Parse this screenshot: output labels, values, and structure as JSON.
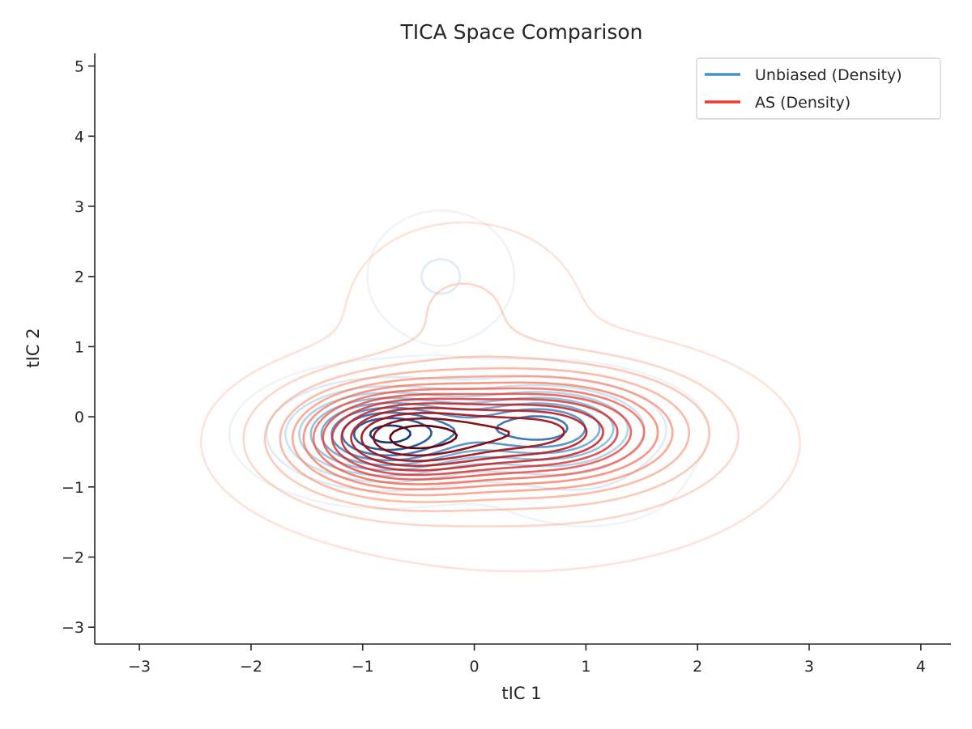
{
  "chart_data": {
    "type": "contour",
    "title": "TICA Space Comparison",
    "xlabel": "tIC 1",
    "ylabel": "tIC 2",
    "xlim": [
      -3.4,
      4.27
    ],
    "ylim": [
      -3.24,
      5.18
    ],
    "x_ticks": [
      -3,
      -2,
      -1,
      0,
      1,
      2,
      3,
      4
    ],
    "y_ticks": [
      -3,
      -2,
      -1,
      0,
      1,
      2,
      3,
      4,
      5
    ],
    "x_tick_labels": [
      "−3",
      "−2",
      "−1",
      "0",
      "1",
      "2",
      "3",
      "4"
    ],
    "y_tick_labels": [
      "−3",
      "−2",
      "−1",
      "0",
      "1",
      "2",
      "3",
      "4",
      "5"
    ],
    "grid": false,
    "legend": {
      "placement": "top-right",
      "entries": [
        {
          "label": "Unbiased (Density)",
          "color": "#4292c6"
        },
        {
          "label": "AS (Density)",
          "color": "#ef3b2c"
        }
      ]
    },
    "series": [
      {
        "name": "Unbiased (Density)",
        "colormap": "Blues",
        "levels": 10,
        "components": [
          {
            "mx": -0.8,
            "my": -0.25,
            "sx": 0.5,
            "sy": 0.38,
            "w": 1.0
          },
          {
            "mx": 0.6,
            "my": -0.15,
            "sx": 0.55,
            "sy": 0.36,
            "w": 0.8
          },
          {
            "mx": -0.3,
            "my": 2.0,
            "sx": 0.35,
            "sy": 0.5,
            "w": 0.12
          },
          {
            "mx": 1.0,
            "my": -0.9,
            "sx": 0.5,
            "sy": 0.4,
            "w": 0.08
          }
        ]
      },
      {
        "name": "AS (Density)",
        "colormap": "Reds",
        "levels": 14,
        "components": [
          {
            "mx": -0.7,
            "my": -0.3,
            "sx": 0.6,
            "sy": 0.48,
            "w": 1.0
          },
          {
            "mx": 0.7,
            "my": -0.2,
            "sx": 0.72,
            "sy": 0.5,
            "w": 0.85
          },
          {
            "mx": -0.1,
            "my": 1.6,
            "sx": 0.6,
            "sy": 0.7,
            "w": 0.1
          },
          {
            "mx": 0.4,
            "my": -0.6,
            "sx": 1.3,
            "sy": 0.9,
            "w": 0.12
          }
        ]
      }
    ]
  }
}
